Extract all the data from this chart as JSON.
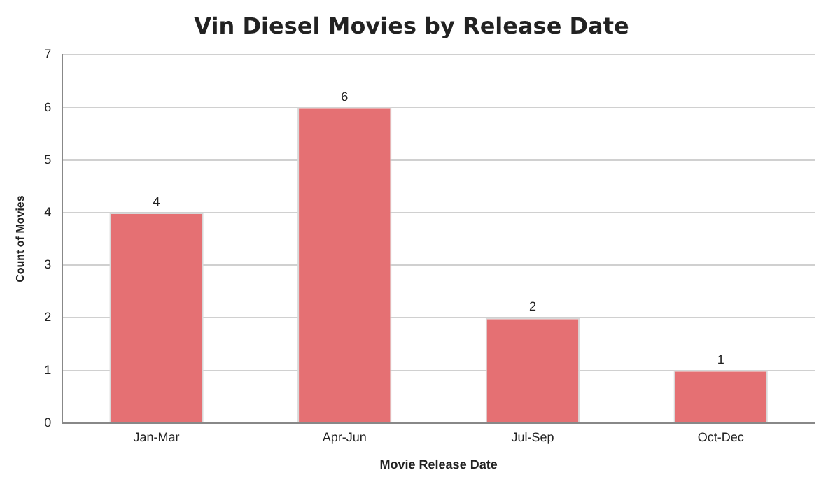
{
  "chart_data": {
    "type": "bar",
    "title": "Vin Diesel Movies by Release Date",
    "xlabel": "Movie Release Date",
    "ylabel": "Count of Movies",
    "categories": [
      "Jan-Mar",
      "Apr-Jun",
      "Jul-Sep",
      "Oct-Dec"
    ],
    "values": [
      4,
      6,
      2,
      1
    ],
    "color": "#e57073",
    "ylim": [
      0,
      7
    ],
    "yticks": [
      0,
      1,
      2,
      3,
      4,
      5,
      6,
      7
    ],
    "grid": "y",
    "data_labels": true
  }
}
